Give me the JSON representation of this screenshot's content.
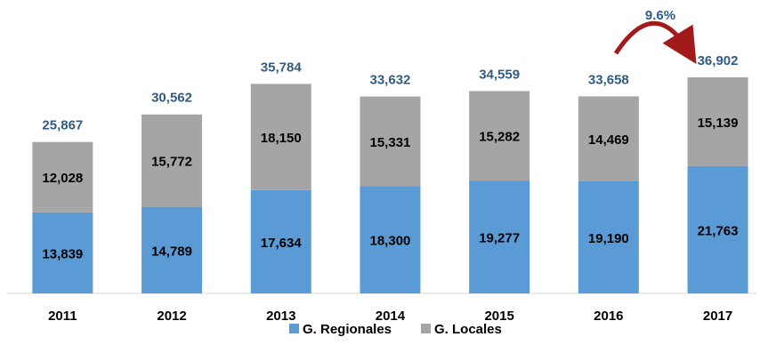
{
  "chart_data": {
    "type": "stacked_bar",
    "categories": [
      "2011",
      "2012",
      "2013",
      "2014",
      "2015",
      "2016",
      "2017"
    ],
    "series": [
      {
        "name": "G. Regionales",
        "color": "#5b9bd5",
        "values": [
          13839,
          14789,
          17634,
          18300,
          19277,
          19190,
          21763
        ],
        "value_labels": [
          "13,839",
          "14,789",
          "17,634",
          "18,300",
          "19,277",
          "19,190",
          "21,763"
        ]
      },
      {
        "name": "G. Locales",
        "color": "#a5a5a5",
        "values": [
          12028,
          15772,
          18150,
          15331,
          15282,
          14469,
          15139
        ],
        "value_labels": [
          "12,028",
          "15,772",
          "18,150",
          "15,331",
          "15,282",
          "14,469",
          "15,139"
        ]
      }
    ],
    "totals": [
      25867,
      30562,
      35784,
      33632,
      34559,
      33658,
      36902
    ],
    "total_labels": [
      "25,867",
      "30,562",
      "35,784",
      "33,632",
      "34,559",
      "33,658",
      "36,902"
    ],
    "annotation": "9.6%",
    "legend": "bottom"
  }
}
